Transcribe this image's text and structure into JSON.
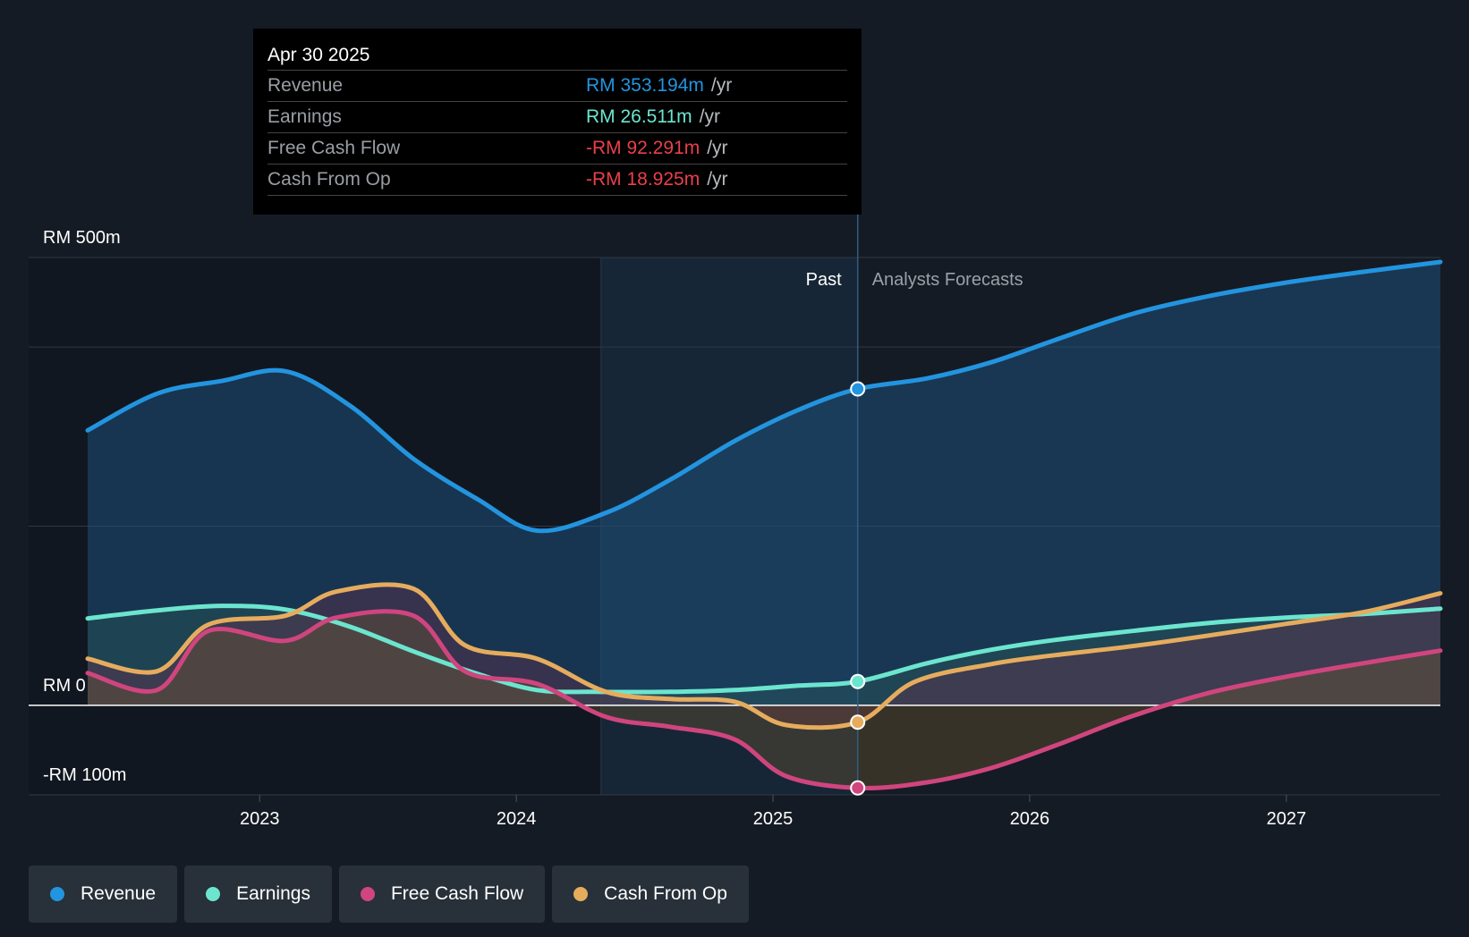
{
  "tooltip": {
    "date": "Apr 30 2025",
    "rows": [
      {
        "name": "Revenue",
        "value": "RM 353.194m",
        "unit": "/yr",
        "color": "#2394df"
      },
      {
        "name": "Earnings",
        "value": "RM 26.511m",
        "unit": "/yr",
        "color": "#6ce5cf"
      },
      {
        "name": "Free Cash Flow",
        "value": "-RM 92.291m",
        "unit": "/yr",
        "color": "#e9404a"
      },
      {
        "name": "Cash From Op",
        "value": "-RM 18.925m",
        "unit": "/yr",
        "color": "#e9404a"
      }
    ]
  },
  "legend": [
    {
      "label": "Revenue",
      "color": "#2394df"
    },
    {
      "label": "Earnings",
      "color": "#6ce5cf"
    },
    {
      "label": "Free Cash Flow",
      "color": "#d0457e"
    },
    {
      "label": "Cash From Op",
      "color": "#e6ac5e"
    }
  ],
  "chart_data": {
    "type": "area",
    "title": "",
    "x_unit": "year",
    "xlim": [
      2022.1,
      2027.6
    ],
    "ylim": [
      -100,
      500
    ],
    "y_ticks": [
      {
        "value": 500,
        "label": "RM 500m"
      },
      {
        "value": 0,
        "label": "RM 0"
      },
      {
        "value": -100,
        "label": "-RM 100m"
      }
    ],
    "gridlines": [
      500,
      400,
      200,
      -100
    ],
    "x_ticks": [
      {
        "value": 2023,
        "label": "2023"
      },
      {
        "value": 2024,
        "label": "2024"
      },
      {
        "value": 2025,
        "label": "2025"
      },
      {
        "value": 2026,
        "label": "2026"
      },
      {
        "value": 2027,
        "label": "2027"
      }
    ],
    "past_label": "Past",
    "forecast_label": "Analysts Forecasts",
    "highlight_start": 2024.33,
    "divider_x": 2025.33,
    "series": [
      {
        "name": "Revenue",
        "color": "#2394df",
        "points": [
          [
            2022.33,
            307
          ],
          [
            2022.6,
            348
          ],
          [
            2022.85,
            362
          ],
          [
            2023.1,
            373
          ],
          [
            2023.35,
            335
          ],
          [
            2023.6,
            275
          ],
          [
            2023.85,
            230
          ],
          [
            2024.08,
            195
          ],
          [
            2024.35,
            215
          ],
          [
            2024.6,
            252
          ],
          [
            2024.85,
            295
          ],
          [
            2025.1,
            330
          ],
          [
            2025.33,
            353.2
          ],
          [
            2025.6,
            365
          ],
          [
            2025.85,
            383
          ],
          [
            2026.1,
            408
          ],
          [
            2026.4,
            437
          ],
          [
            2026.7,
            457
          ],
          [
            2027.0,
            472
          ],
          [
            2027.3,
            484
          ],
          [
            2027.6,
            495
          ]
        ]
      },
      {
        "name": "Earnings",
        "color": "#6ce5cf",
        "points": [
          [
            2022.33,
            97
          ],
          [
            2022.6,
            106
          ],
          [
            2022.85,
            111
          ],
          [
            2023.1,
            107
          ],
          [
            2023.35,
            88
          ],
          [
            2023.6,
            60
          ],
          [
            2023.85,
            35
          ],
          [
            2024.08,
            17
          ],
          [
            2024.3,
            15
          ],
          [
            2024.6,
            15
          ],
          [
            2024.85,
            17
          ],
          [
            2025.1,
            22
          ],
          [
            2025.33,
            26.5
          ],
          [
            2025.6,
            47
          ],
          [
            2025.85,
            62
          ],
          [
            2026.1,
            73
          ],
          [
            2026.4,
            83
          ],
          [
            2026.7,
            92
          ],
          [
            2027.0,
            98
          ],
          [
            2027.3,
            102
          ],
          [
            2027.6,
            108
          ]
        ]
      },
      {
        "name": "Free Cash Flow",
        "color": "#d0457e",
        "points": [
          [
            2022.33,
            36
          ],
          [
            2022.6,
            17
          ],
          [
            2022.8,
            83
          ],
          [
            2023.1,
            72
          ],
          [
            2023.3,
            98
          ],
          [
            2023.6,
            100
          ],
          [
            2023.8,
            38
          ],
          [
            2024.08,
            24
          ],
          [
            2024.35,
            -13
          ],
          [
            2024.6,
            -24
          ],
          [
            2024.85,
            -38
          ],
          [
            2025.05,
            -79
          ],
          [
            2025.33,
            -92.3
          ],
          [
            2025.6,
            -86
          ],
          [
            2025.85,
            -70
          ],
          [
            2026.1,
            -45
          ],
          [
            2026.4,
            -12
          ],
          [
            2026.7,
            14
          ],
          [
            2027.0,
            32
          ],
          [
            2027.3,
            47
          ],
          [
            2027.6,
            61
          ]
        ]
      },
      {
        "name": "Cash From Op",
        "color": "#e6ac5e",
        "points": [
          [
            2022.33,
            52
          ],
          [
            2022.6,
            38
          ],
          [
            2022.8,
            90
          ],
          [
            2023.1,
            100
          ],
          [
            2023.3,
            127
          ],
          [
            2023.6,
            130
          ],
          [
            2023.8,
            67
          ],
          [
            2024.08,
            52
          ],
          [
            2024.35,
            15
          ],
          [
            2024.6,
            7
          ],
          [
            2024.85,
            4
          ],
          [
            2025.05,
            -22
          ],
          [
            2025.33,
            -18.9
          ],
          [
            2025.55,
            26
          ],
          [
            2025.85,
            46
          ],
          [
            2026.1,
            56
          ],
          [
            2026.4,
            66
          ],
          [
            2026.7,
            78
          ],
          [
            2027.0,
            91
          ],
          [
            2027.3,
            104
          ],
          [
            2027.6,
            125
          ]
        ]
      }
    ]
  }
}
